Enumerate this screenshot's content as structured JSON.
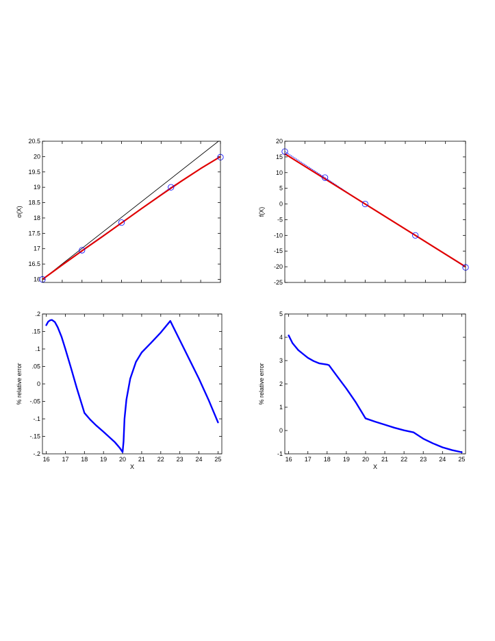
{
  "chart_data": [
    {
      "type": "line",
      "id": "top-left",
      "title": "",
      "xlabel": "",
      "ylabel": "σ(X)",
      "xlim": [
        16,
        25
      ],
      "ylim": [
        15.9,
        20.5
      ],
      "xticks": [
        16,
        17,
        18,
        19,
        20,
        21,
        22,
        23,
        24,
        25
      ],
      "show_xtick_labels": false,
      "yticks": [
        16,
        16.5,
        17,
        17.5,
        18,
        18.5,
        19,
        19.5,
        20,
        20.5
      ],
      "grid": false,
      "series": [
        {
          "style": "thin-black",
          "color": "#000000",
          "x": [
            16,
            25
          ],
          "y": [
            16.0,
            20.55
          ]
        },
        {
          "style": "dotted-blue",
          "color": "#0000ff",
          "x": [
            16,
            18,
            20,
            22.5,
            25
          ],
          "y": [
            16.0,
            16.95,
            17.85,
            19.0,
            20.0
          ]
        },
        {
          "style": "thick-red",
          "color": "#e00000",
          "x": [
            16,
            17,
            18,
            19,
            20,
            21,
            22,
            22.5,
            23,
            24,
            25
          ],
          "y": [
            16.0,
            16.47,
            16.93,
            17.38,
            17.84,
            18.3,
            18.75,
            18.97,
            19.19,
            19.61,
            20.0
          ]
        },
        {
          "style": "circle-markers",
          "color": "#0000ff",
          "x": [
            16,
            18,
            20,
            22.5,
            25
          ],
          "y": [
            16.0,
            16.95,
            17.85,
            19.0,
            19.98
          ]
        }
      ]
    },
    {
      "type": "line",
      "id": "top-right",
      "title": "",
      "xlabel": "",
      "ylabel": "f(X)",
      "xlim": [
        16,
        25
      ],
      "ylim": [
        -25,
        20
      ],
      "xticks": [
        16,
        17,
        18,
        19,
        20,
        21,
        22,
        23,
        24,
        25
      ],
      "show_xtick_labels": false,
      "yticks": [
        -25,
        -20,
        -15,
        -10,
        -5,
        0,
        5,
        10,
        15,
        20
      ],
      "grid": false,
      "series": [
        {
          "style": "dotted-blue",
          "color": "#0000ff",
          "x": [
            16,
            18,
            20,
            22.5,
            25
          ],
          "y": [
            16.7,
            8.4,
            0.0,
            -10.0,
            -20.2
          ]
        },
        {
          "style": "thick-red",
          "color": "#e00000",
          "x": [
            16,
            18,
            20,
            22.5,
            25
          ],
          "y": [
            16.0,
            8.0,
            0.0,
            -10.0,
            -20.0
          ]
        },
        {
          "style": "circle-markers",
          "color": "#0000ff",
          "x": [
            16,
            18,
            20,
            22.5,
            25
          ],
          "y": [
            16.7,
            8.4,
            0.0,
            -10.0,
            -20.2
          ]
        }
      ]
    },
    {
      "type": "line",
      "id": "bottom-left",
      "title": "",
      "xlabel": "X",
      "ylabel": "% relative error",
      "xlim": [
        15.8,
        25.2
      ],
      "ylim": [
        -0.2,
        0.2
      ],
      "xticks": [
        16,
        17,
        18,
        19,
        20,
        21,
        22,
        23,
        24,
        25
      ],
      "show_xtick_labels": true,
      "yticks": [
        -0.2,
        -0.15,
        -0.1,
        -0.05,
        0,
        0.05,
        0.1,
        0.15,
        0.2
      ],
      "grid": false,
      "series": [
        {
          "style": "thick-blue",
          "color": "#0000ff",
          "x": [
            16,
            16.1,
            16.2,
            16.3,
            16.45,
            16.6,
            16.8,
            17.0,
            17.3,
            17.6,
            18.0,
            18.3,
            18.6,
            19.0,
            19.3,
            19.6,
            19.85,
            20.0,
            20.05,
            20.1,
            20.2,
            20.4,
            20.7,
            21.0,
            21.5,
            22.0,
            22.5,
            22.7,
            23.0,
            23.5,
            24.0,
            24.5,
            25.0
          ],
          "y": [
            0.168,
            0.178,
            0.182,
            0.183,
            0.177,
            0.162,
            0.135,
            0.1,
            0.045,
            -0.012,
            -0.083,
            -0.102,
            -0.118,
            -0.137,
            -0.152,
            -0.167,
            -0.183,
            -0.195,
            -0.165,
            -0.1,
            -0.045,
            0.015,
            0.063,
            0.09,
            0.118,
            0.147,
            0.18,
            0.158,
            0.125,
            0.07,
            0.015,
            -0.045,
            -0.11
          ]
        }
      ]
    },
    {
      "type": "line",
      "id": "bottom-right",
      "title": "",
      "xlabel": "X",
      "ylabel": "% relative error",
      "xlim": [
        15.8,
        25.2
      ],
      "ylim": [
        -1,
        5
      ],
      "xticks": [
        16,
        17,
        18,
        19,
        20,
        21,
        22,
        23,
        24,
        25
      ],
      "show_xtick_labels": true,
      "yticks": [
        -1,
        0,
        1,
        2,
        3,
        4,
        5
      ],
      "grid": false,
      "series": [
        {
          "style": "thick-blue",
          "color": "#0000ff",
          "x": [
            16,
            16.2,
            16.5,
            16.8,
            17.0,
            17.3,
            17.6,
            18.0,
            18.1,
            18.5,
            19.0,
            19.5,
            20.0,
            20.5,
            21.0,
            21.5,
            22.0,
            22.5,
            23.0,
            23.5,
            24.0,
            24.5,
            25.0
          ],
          "y": [
            4.08,
            3.75,
            3.45,
            3.25,
            3.12,
            2.98,
            2.88,
            2.83,
            2.8,
            2.35,
            1.8,
            1.2,
            0.52,
            0.38,
            0.25,
            0.12,
            0.01,
            -0.08,
            -0.35,
            -0.55,
            -0.72,
            -0.84,
            -0.93
          ]
        }
      ]
    }
  ]
}
